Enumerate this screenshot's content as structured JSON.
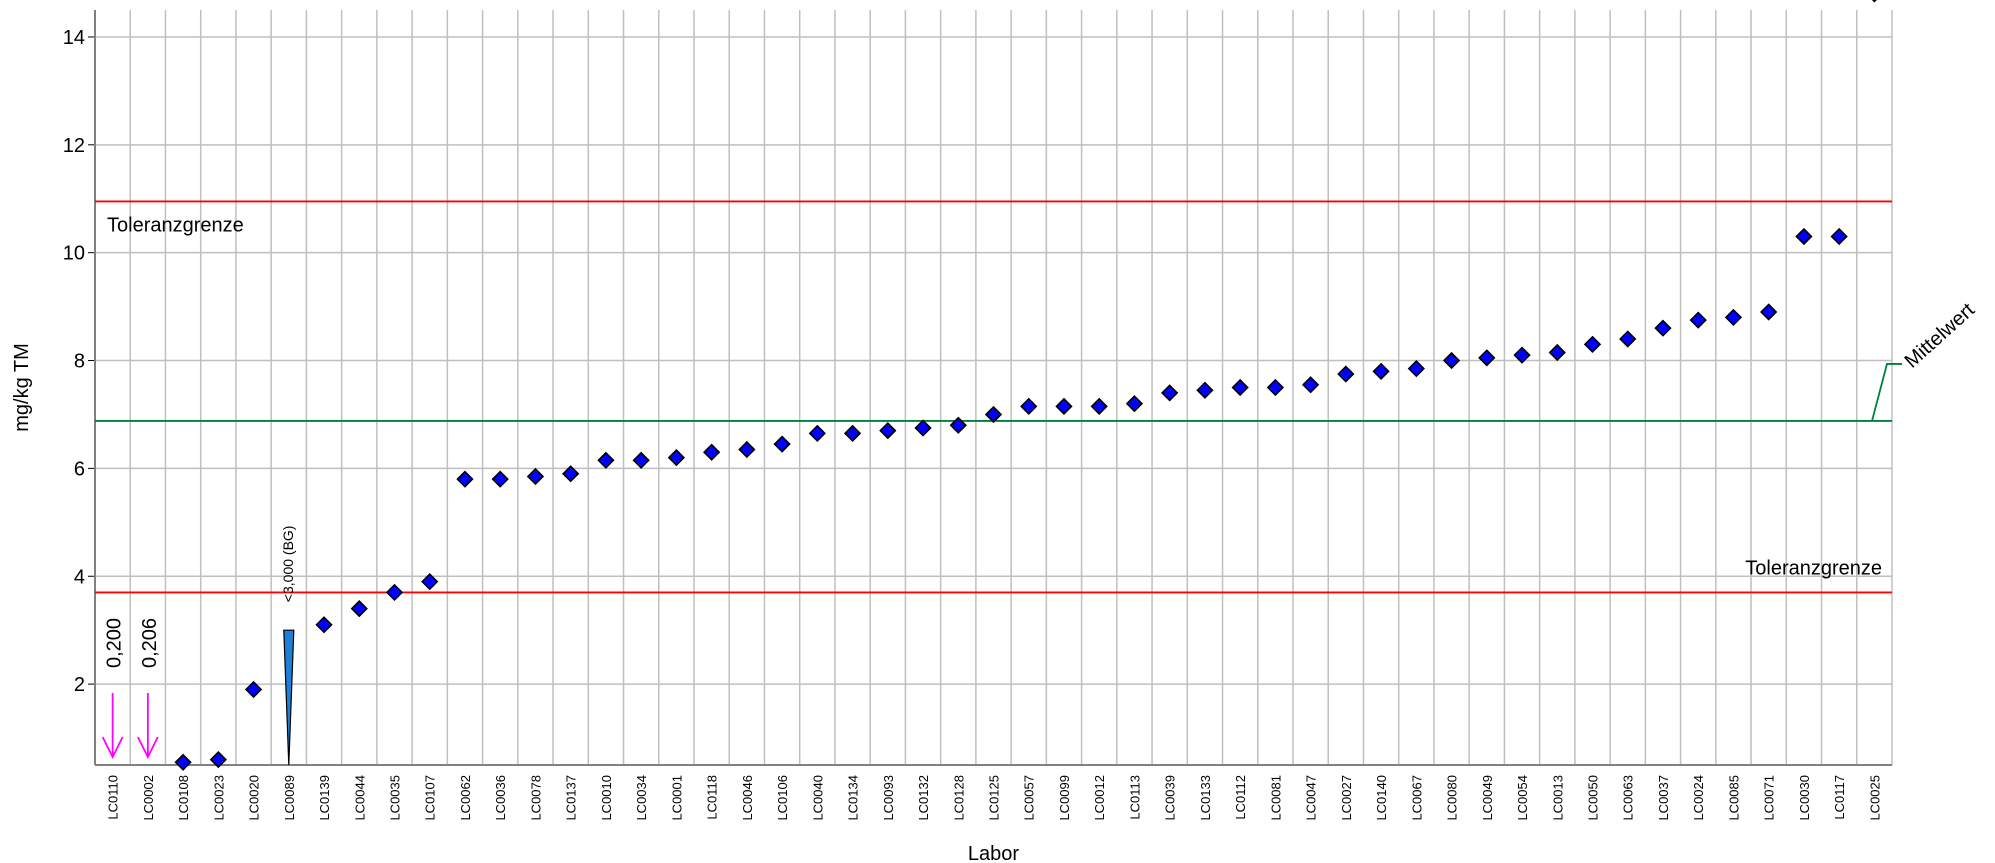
{
  "chart_data": {
    "type": "scatter",
    "xlabel": "Labor",
    "ylabel": "mg/kg TM",
    "ylim": [
      0.5,
      14.5
    ],
    "yticks": [
      2,
      4,
      6,
      8,
      10,
      12,
      14
    ],
    "grid": true,
    "categories": [
      "LC0110",
      "LC0002",
      "LC0108",
      "LC0023",
      "LC0020",
      "LC0089",
      "LC0139",
      "LC0044",
      "LC0035",
      "LC0107",
      "LC0062",
      "LC0036",
      "LC0078",
      "LC0137",
      "LC0010",
      "LC0034",
      "LC0001",
      "LC0118",
      "LC0046",
      "LC0106",
      "LC0040",
      "LC0134",
      "LC0093",
      "LC0132",
      "LC0128",
      "LC0125",
      "LC0057",
      "LC0099",
      "LC0012",
      "LC0113",
      "LC0039",
      "LC0133",
      "LC0112",
      "LC0081",
      "LC0047",
      "LC0027",
      "LC0140",
      "LC0067",
      "LC0080",
      "LC0049",
      "LC0054",
      "LC0013",
      "LC0050",
      "LC0063",
      "LC0037",
      "LC0024",
      "LC0085",
      "LC0071",
      "LC0030",
      "LC0117",
      "LC0025"
    ],
    "series": [
      {
        "marker": "diamond",
        "color": "#0000ff",
        "values": [
          null,
          null,
          0.55,
          0.6,
          1.9,
          null,
          3.1,
          3.4,
          3.7,
          3.9,
          5.8,
          5.8,
          5.85,
          5.9,
          6.15,
          6.15,
          6.2,
          6.3,
          6.35,
          6.45,
          6.65,
          6.65,
          6.7,
          6.75,
          6.8,
          7.0,
          7.15,
          7.15,
          7.15,
          7.2,
          7.4,
          7.45,
          7.5,
          7.5,
          7.55,
          7.75,
          7.8,
          7.85,
          8.0,
          8.05,
          8.1,
          8.15,
          8.3,
          8.4,
          8.6,
          8.75,
          8.8,
          8.9,
          10.3,
          10.3,
          14.8
        ]
      }
    ],
    "below_range": [
      {
        "lab": "LC0110",
        "label": "0,200",
        "color": "#ff00ff"
      },
      {
        "lab": "LC0002",
        "label": "0,206",
        "color": "#ff00ff"
      }
    ],
    "less_than": [
      {
        "lab": "LC0089",
        "value": 3.0,
        "label": "<3,000 (BG)",
        "color": "#1e7fd6"
      }
    ],
    "reference_lines": {
      "upper_tolerance": {
        "value": 10.95,
        "label": "Toleranzgrenze",
        "color": "#ff0000"
      },
      "mean": {
        "value": 6.88,
        "label": "Mittelwert",
        "color": "#008040"
      },
      "lower_tolerance": {
        "value": 3.7,
        "label": "Toleranzgrenze",
        "color": "#ff0000"
      }
    }
  }
}
